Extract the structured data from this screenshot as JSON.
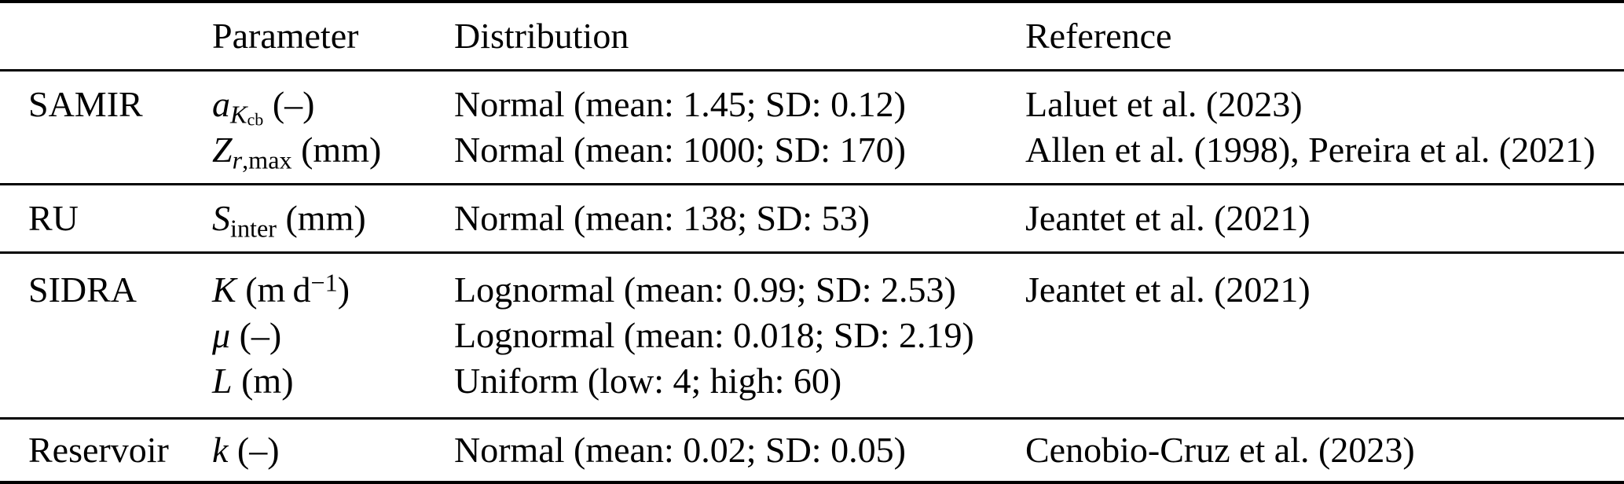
{
  "page": {
    "background": "#ffffff",
    "text_color": "#000000",
    "rule_color": "#000000"
  },
  "table": {
    "header": {
      "model": "",
      "parameter": "Parameter",
      "distribution": "Distribution",
      "reference": "Reference"
    },
    "sections": [
      {
        "model": "SAMIR",
        "rows": [
          {
            "parameter": [
              {
                "t": "a",
                "s": "i"
              },
              {
                "t": "K",
                "s": "subi"
              },
              {
                "t": "cb",
                "s": "subsub"
              },
              {
                "t": " (–)",
                "s": "r"
              }
            ],
            "distribution": "Normal (mean: 1.45; SD: 0.12)",
            "reference": "Laluet et al. (2023)"
          },
          {
            "parameter": [
              {
                "t": "Z",
                "s": "i"
              },
              {
                "t": "r",
                "s": "subi"
              },
              {
                "t": ",max",
                "s": "sub"
              },
              {
                "t": " (mm)",
                "s": "r"
              }
            ],
            "distribution": "Normal (mean: 1000; SD: 170)",
            "reference": "Allen et al. (1998), Pereira et al. (2021)"
          }
        ]
      },
      {
        "model": "RU",
        "rows": [
          {
            "parameter": [
              {
                "t": "S",
                "s": "i"
              },
              {
                "t": "inter",
                "s": "sub"
              },
              {
                "t": " (mm)",
                "s": "r"
              }
            ],
            "distribution": "Normal (mean: 138; SD: 53)",
            "reference": "Jeantet et al. (2021)"
          }
        ]
      },
      {
        "model": "SIDRA",
        "rows": [
          {
            "parameter": [
              {
                "t": "K",
                "s": "i"
              },
              {
                "t": " (m d",
                "s": "r"
              },
              {
                "t": "−1",
                "s": "sup"
              },
              {
                "t": ")",
                "s": "r"
              }
            ],
            "distribution": "Lognormal (mean: 0.99; SD: 2.53)",
            "reference": "Jeantet et al. (2021)"
          },
          {
            "parameter": [
              {
                "t": "μ",
                "s": "i"
              },
              {
                "t": " (–)",
                "s": "r"
              }
            ],
            "distribution": "Lognormal (mean: 0.018; SD: 2.19)",
            "reference": ""
          },
          {
            "parameter": [
              {
                "t": "L",
                "s": "i"
              },
              {
                "t": " (m)",
                "s": "r"
              }
            ],
            "distribution": "Uniform (low: 4; high: 60)",
            "reference": ""
          }
        ]
      },
      {
        "model": "Reservoir",
        "rows": [
          {
            "parameter": [
              {
                "t": "k",
                "s": "i"
              },
              {
                "t": " (–)",
                "s": "r"
              }
            ],
            "distribution": "Normal (mean: 0.02; SD: 0.05)",
            "reference": "Cenobio-Cruz et al. (2023)"
          }
        ]
      }
    ]
  }
}
